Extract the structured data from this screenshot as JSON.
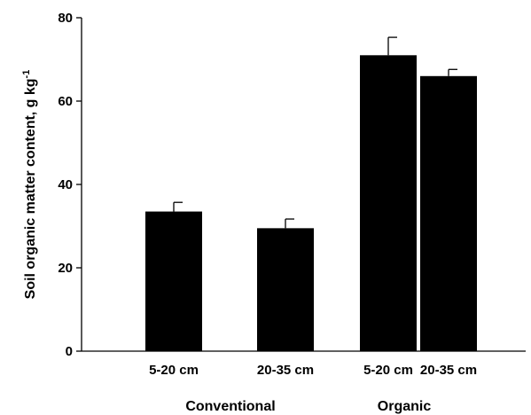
{
  "chart_data": {
    "type": "bar",
    "title": "",
    "xlabel": "",
    "ylabel": "Soil organic matter content, g kg",
    "ylabel_superscript": "-1",
    "ylim": [
      0,
      80
    ],
    "yticks": [
      0,
      20,
      40,
      60,
      80
    ],
    "grid": false,
    "categories": [
      "5-20 cm",
      "20-35 cm",
      "5-20 cm",
      "20-35 cm"
    ],
    "groups": [
      {
        "label": "Conventional",
        "categories": [
          0,
          1
        ]
      },
      {
        "label": "Organic",
        "categories": [
          2,
          3
        ]
      }
    ],
    "series": [
      {
        "values": [
          33.5,
          29.5,
          71.0,
          66.0
        ],
        "errors": [
          2.2,
          2.2,
          4.3,
          1.6
        ],
        "color": "#000000"
      }
    ]
  }
}
